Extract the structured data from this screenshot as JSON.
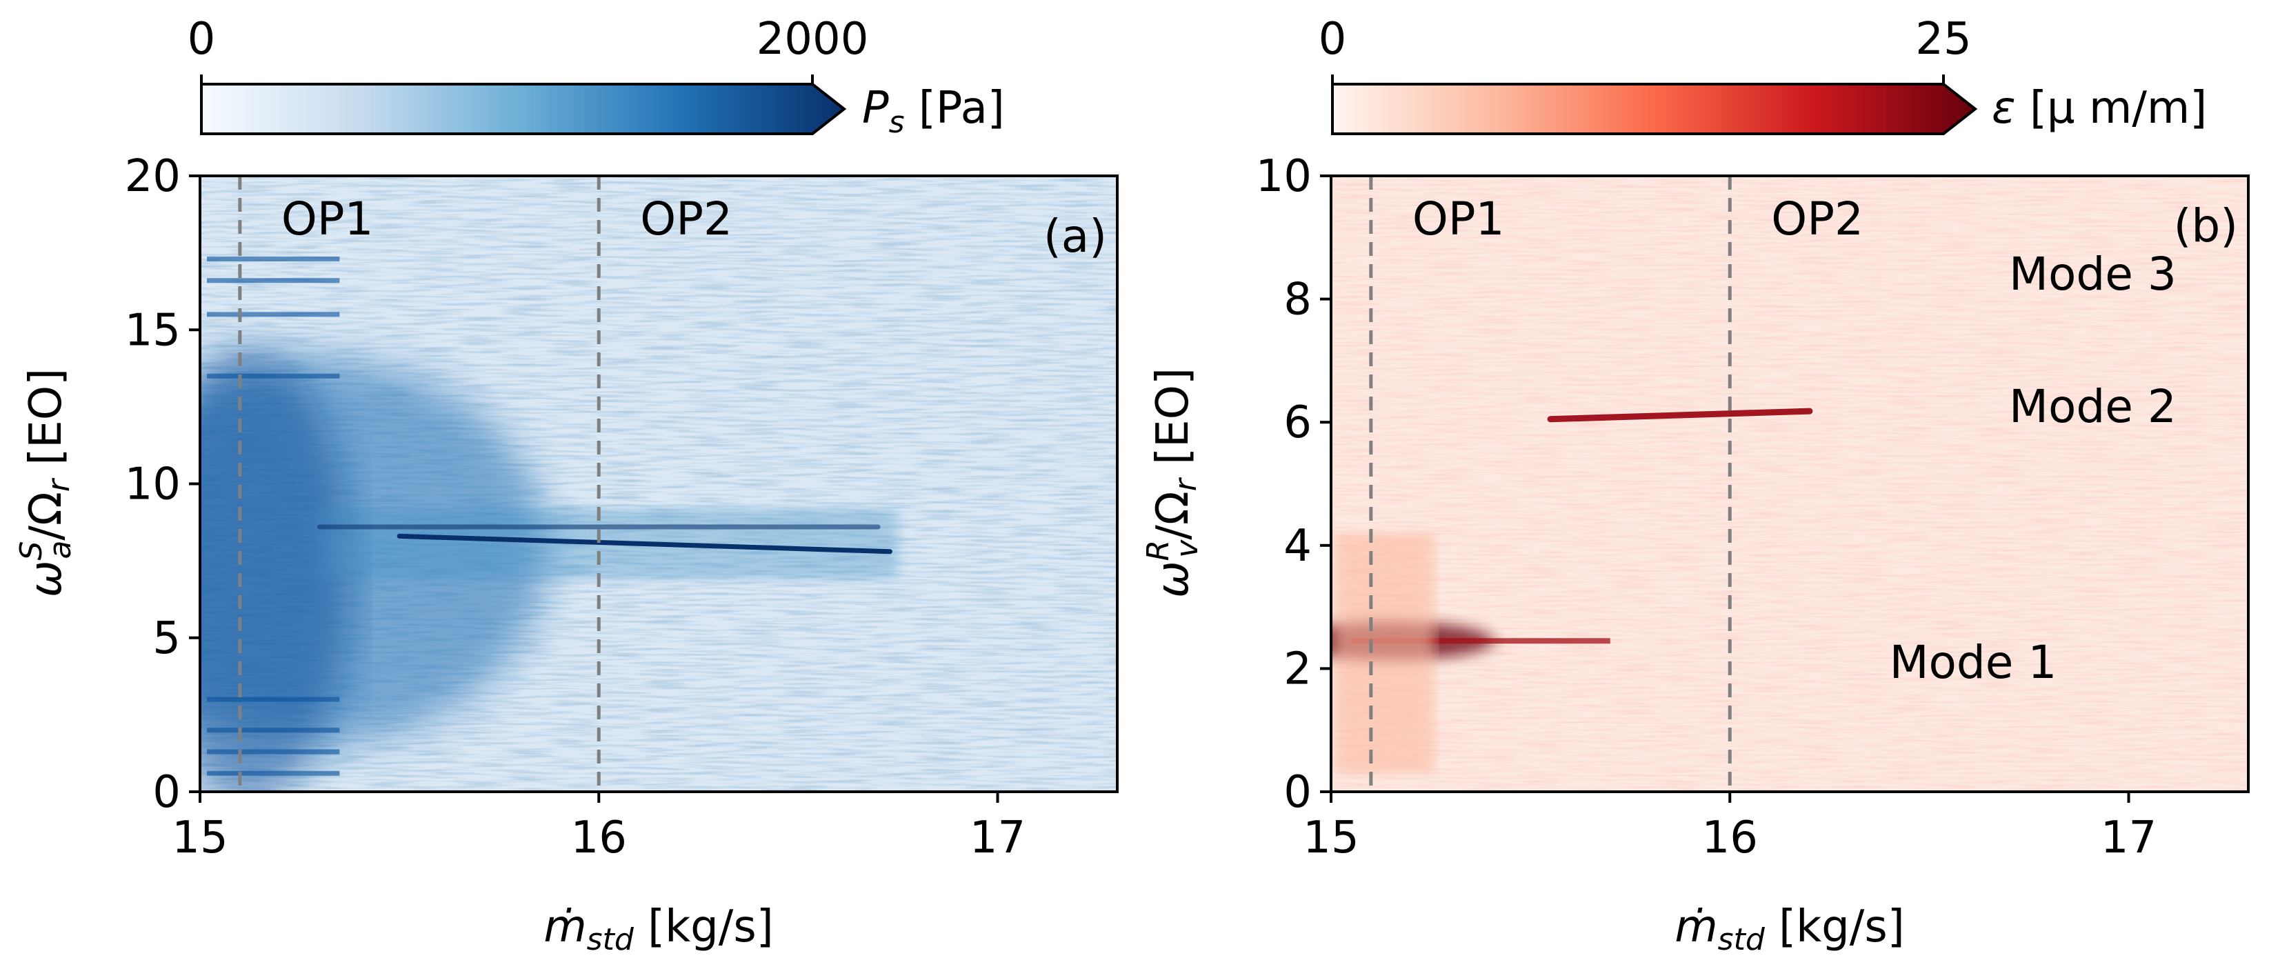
{
  "chart_data": [
    {
      "type": "heatmap",
      "panel_label": "(a)",
      "xlabel_base": "ṁ",
      "xlabel_sub": "std",
      "xlabel_unit": " [kg/s]",
      "ylabel_sym": "ω",
      "ylabel_sub": "a",
      "ylabel_sup": "S",
      "ylabel_den": "/Ω",
      "ylabel_den_sub": "r",
      "ylabel_unit": " [EO]",
      "xlim": [
        15.0,
        17.3
      ],
      "ylim": [
        0,
        20
      ],
      "xticks": [
        15,
        16,
        17
      ],
      "xtick_labels": [
        "15",
        "16",
        "17"
      ],
      "yticks": [
        0,
        5,
        10,
        15,
        20
      ],
      "ytick_labels": [
        "0",
        "5",
        "10",
        "15",
        "20"
      ],
      "colorbar": {
        "min": 0,
        "max": 2000,
        "min_label": "0",
        "max_label": "2000",
        "label_sym": "P",
        "label_sub": "s",
        "label_unit": " [Pa]",
        "colormap": "Blues"
      },
      "operating_points": [
        {
          "label": "OP1",
          "x": 15.1
        },
        {
          "label": "OP2",
          "x": 16.0
        }
      ],
      "features": [
        {
          "name": "main tone",
          "y_start": 8.3,
          "y_end": 7.8,
          "x_start": 15.5,
          "x_end": 16.73,
          "intensity": 1.0
        },
        {
          "name": "upper tone",
          "y_start": 8.6,
          "y_end": 8.6,
          "x_start": 15.3,
          "x_end": 16.7,
          "intensity": 0.55
        },
        {
          "name": "broadband low-flow",
          "y_center": 7.5,
          "x_start": 15.0,
          "x_end": 15.25,
          "intensity": 0.8
        }
      ]
    },
    {
      "type": "heatmap",
      "panel_label": "(b)",
      "xlabel_base": "ṁ",
      "xlabel_sub": "std",
      "xlabel_unit": " [kg/s]",
      "ylabel_sym": "ω",
      "ylabel_sub": "v",
      "ylabel_sup": "R",
      "ylabel_den": "/Ω",
      "ylabel_den_sub": "r",
      "ylabel_unit": " [EO]",
      "xlim": [
        15.0,
        17.3
      ],
      "ylim": [
        0,
        10
      ],
      "xticks": [
        15,
        16,
        17
      ],
      "xtick_labels": [
        "15",
        "16",
        "17"
      ],
      "yticks": [
        0,
        2,
        4,
        6,
        8,
        10
      ],
      "ytick_labels": [
        "0",
        "2",
        "4",
        "6",
        "8",
        "10"
      ],
      "colorbar": {
        "min": 0,
        "max": 25,
        "min_label": "0",
        "max_label": "25",
        "label_sym": "ε",
        "label_unit": " [μ m/m]",
        "colormap": "Reds"
      },
      "operating_points": [
        {
          "label": "OP1",
          "x": 15.1
        },
        {
          "label": "OP2",
          "x": 16.0
        }
      ],
      "modes": [
        {
          "label": "Mode 1",
          "frequency": 2.45,
          "label_x": 16.4,
          "label_y": 1.85
        },
        {
          "label": "Mode 2",
          "frequency": 6.1,
          "label_x": 16.7,
          "label_y": 6.0
        },
        {
          "label": "Mode 3",
          "frequency": 8.2,
          "label_x": 16.7,
          "label_y": 8.15
        }
      ]
    }
  ]
}
